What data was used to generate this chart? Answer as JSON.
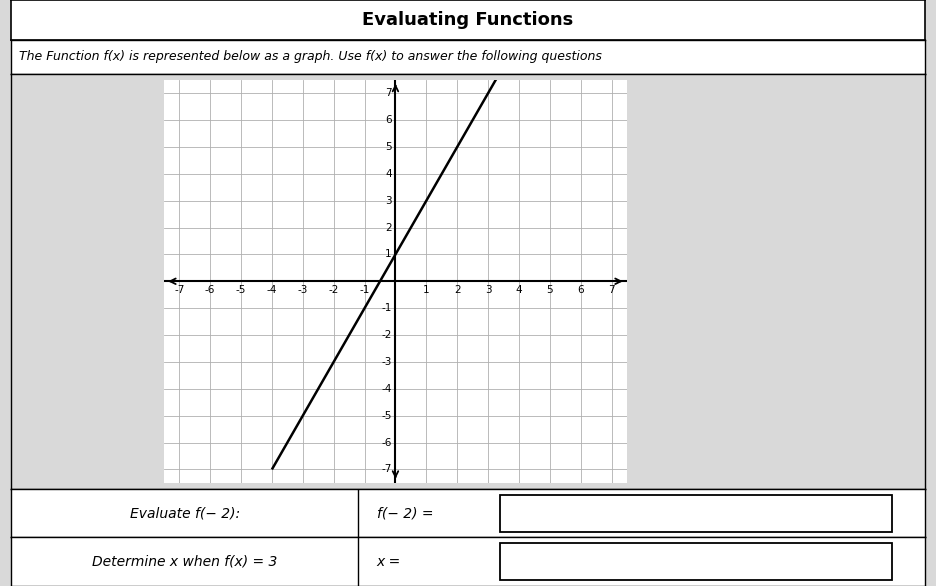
{
  "title": "Evaluating Functions",
  "subtitle": "The Function f(x) is represented below as a graph. Use f(x) to answer the following questions",
  "slope": 2,
  "intercept": 1,
  "line_x_start": -4.0,
  "line_x_end": 3.3,
  "x_range": [
    -7,
    7
  ],
  "y_range": [
    -7,
    7
  ],
  "line_color": "#000000",
  "grid_color": "#b0b0b0",
  "axis_color": "#000000",
  "background_color": "#d9d9d9",
  "plot_bg_color": "#ffffff",
  "box_bg": "#ffffff",
  "label1_left": "Evaluate f(− 2):",
  "label1_right": "f(− 2) =",
  "label2_left": "Determine x when f(x) = 3",
  "label2_right": "x ="
}
